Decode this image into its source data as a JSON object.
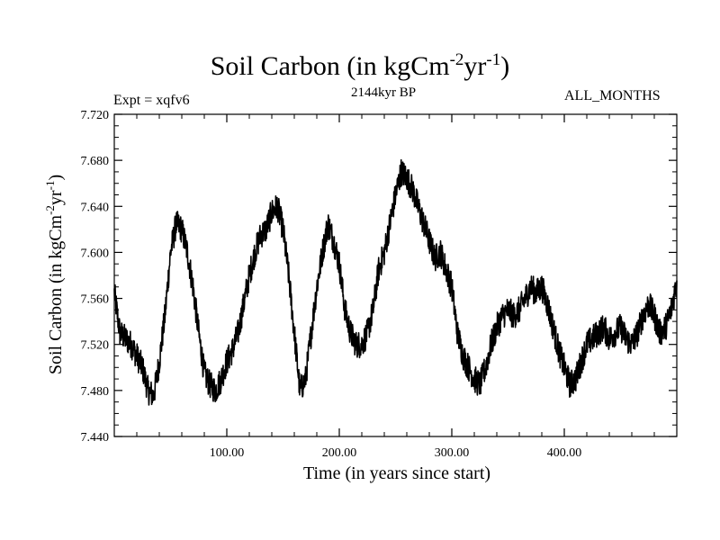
{
  "chart_data": {
    "type": "line",
    "title": "Soil Carbon (in kgCm",
    "title_sup1": "-2",
    "title_mid": "yr",
    "title_sup2": "-1",
    "title_end": ")",
    "subtitle": "2144kyr BP",
    "left_label": "Expt = xqfv6",
    "right_label": "ALL_MONTHS",
    "xlabel": "Time (in years since start)",
    "ylabel": "Soil Carbon (in kgCm",
    "ylabel_sup1": "-2",
    "ylabel_mid": "yr",
    "ylabel_sup2": "-1",
    "ylabel_end": ")",
    "xlim": [
      0,
      500
    ],
    "ylim": [
      7.44,
      7.72
    ],
    "xticks": [
      100,
      200,
      300,
      400
    ],
    "xtick_labels": [
      "100.00",
      "200.00",
      "300.00",
      "400.00"
    ],
    "yticks": [
      7.44,
      7.48,
      7.52,
      7.56,
      7.6,
      7.64,
      7.68,
      7.72
    ],
    "ytick_labels": [
      "7.440",
      "7.480",
      "7.520",
      "7.560",
      "7.600",
      "7.640",
      "7.680",
      "7.720"
    ],
    "line_color": "#000000",
    "noise_amplitude": 0.012,
    "series": [
      {
        "name": "xqfv6",
        "x": [
          0,
          5,
          10,
          15,
          20,
          25,
          30,
          35,
          40,
          45,
          50,
          55,
          60,
          65,
          70,
          75,
          80,
          85,
          90,
          95,
          100,
          105,
          110,
          115,
          120,
          125,
          130,
          135,
          140,
          145,
          150,
          155,
          160,
          165,
          170,
          175,
          180,
          185,
          190,
          195,
          200,
          205,
          210,
          215,
          220,
          225,
          230,
          235,
          240,
          245,
          250,
          255,
          260,
          265,
          270,
          275,
          280,
          285,
          290,
          295,
          300,
          305,
          310,
          315,
          320,
          325,
          330,
          335,
          340,
          345,
          350,
          355,
          360,
          365,
          370,
          375,
          380,
          385,
          390,
          395,
          400,
          405,
          410,
          415,
          420,
          425,
          430,
          435,
          440,
          445,
          450,
          455,
          460,
          465,
          470,
          475,
          480,
          485,
          490,
          495,
          500
        ],
        "values": [
          7.565,
          7.53,
          7.525,
          7.52,
          7.51,
          7.5,
          7.48,
          7.475,
          7.505,
          7.545,
          7.6,
          7.625,
          7.62,
          7.6,
          7.57,
          7.53,
          7.495,
          7.485,
          7.48,
          7.49,
          7.505,
          7.515,
          7.53,
          7.555,
          7.58,
          7.6,
          7.615,
          7.62,
          7.635,
          7.64,
          7.62,
          7.58,
          7.53,
          7.48,
          7.49,
          7.53,
          7.57,
          7.6,
          7.625,
          7.61,
          7.59,
          7.55,
          7.53,
          7.52,
          7.52,
          7.53,
          7.55,
          7.585,
          7.6,
          7.625,
          7.65,
          7.67,
          7.665,
          7.655,
          7.64,
          7.625,
          7.61,
          7.595,
          7.6,
          7.585,
          7.57,
          7.53,
          7.51,
          7.5,
          7.49,
          7.485,
          7.5,
          7.52,
          7.535,
          7.545,
          7.55,
          7.545,
          7.55,
          7.56,
          7.57,
          7.565,
          7.57,
          7.555,
          7.535,
          7.515,
          7.5,
          7.485,
          7.49,
          7.505,
          7.52,
          7.525,
          7.53,
          7.535,
          7.525,
          7.53,
          7.535,
          7.525,
          7.52,
          7.53,
          7.545,
          7.555,
          7.545,
          7.53,
          7.535,
          7.55,
          7.575
        ]
      }
    ]
  }
}
